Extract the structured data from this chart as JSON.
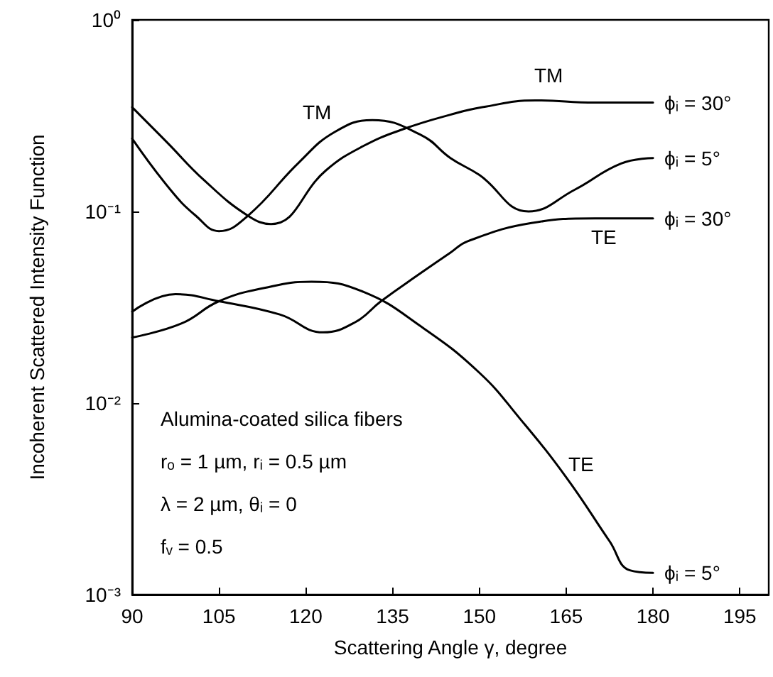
{
  "chart_data": {
    "type": "line",
    "xlabel": "Scattering Angle γ, degree",
    "ylabel": "Incoherent Scattered Intensity Function",
    "xlim": [
      90,
      200
    ],
    "xticks": [
      90,
      105,
      120,
      135,
      150,
      165,
      180,
      195
    ],
    "ylim": [
      0.001,
      1
    ],
    "yticks": [
      {
        "value": 0.001,
        "label": "10⁻³"
      },
      {
        "value": 0.01,
        "label": "10⁻²"
      },
      {
        "value": 0.1,
        "label": "10⁻¹"
      },
      {
        "value": 1,
        "label": "10⁰"
      }
    ],
    "log": "y",
    "grid": false,
    "marker": "none",
    "line_style": "solid",
    "series": [
      {
        "name": "ϕᵢ = 30°",
        "color": "#000000",
        "x": [
          90,
          96,
          102.5,
          110,
          114,
          123.5,
          130,
          137,
          145,
          150.5,
          159.7,
          170,
          180
        ],
        "values": [
          0.35,
          0.23,
          0.145,
          0.095,
          0.086,
          0.164,
          0.22,
          0.27,
          0.32,
          0.35,
          0.38,
          0.37,
          0.37
        ]
      },
      {
        "name": "ϕᵢ = 5°",
        "color": "#000000",
        "x": [
          90,
          96.6,
          101,
          105,
          110,
          118.8,
          125,
          131.5,
          140,
          145,
          150,
          158.5,
          166.5,
          174.5,
          180
        ],
        "values": [
          0.24,
          0.13,
          0.095,
          0.079,
          0.095,
          0.18,
          0.26,
          0.3,
          0.25,
          0.19,
          0.155,
          0.1,
          0.13,
          0.178,
          0.19
        ]
      },
      {
        "name": "ϕᵢ = 30°",
        "color": "#000000",
        "x": [
          90,
          97.5,
          105,
          115.5,
          123,
          128.6,
          133,
          140,
          145,
          148,
          159,
          170,
          180
        ],
        "values": [
          0.03,
          0.037,
          0.034,
          0.029,
          0.0234,
          0.0265,
          0.034,
          0.048,
          0.061,
          0.07,
          0.087,
          0.092,
          0.092
        ]
      },
      {
        "name": "ϕᵢ = 5°",
        "color": "#000000",
        "x": [
          90,
          98.5,
          105,
          113,
          121,
          130,
          140,
          150,
          157,
          165,
          172.5,
          176,
          180
        ],
        "values": [
          0.022,
          0.026,
          0.034,
          0.04,
          0.043,
          0.038,
          0.025,
          0.0144,
          0.0083,
          0.0041,
          0.0019,
          0.00134,
          0.0013
        ]
      }
    ],
    "annotations": [
      "TM",
      "TM",
      "TE",
      "TE",
      "Alumina-coated silica fibers",
      "rₒ = 1 µm, rᵢ = 0.5 µm",
      "λ = 2 µm, θᵢ = 0",
      "fᵥ = 0.5"
    ]
  }
}
